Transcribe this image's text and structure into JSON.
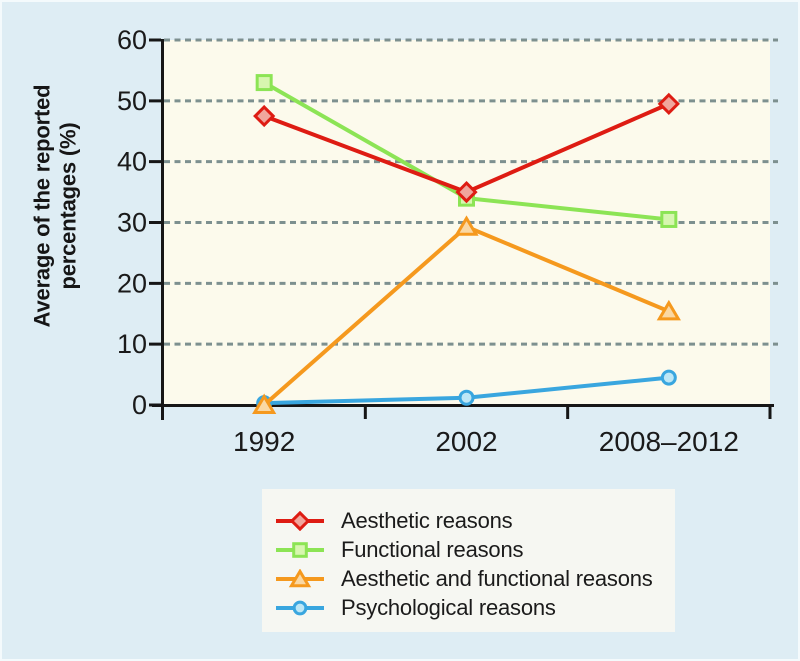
{
  "figure": {
    "colors": {
      "background": "#deedf4",
      "plot_background": "#fcfaec",
      "legend_background": "#f6f7f2",
      "grid": "#7d908f",
      "axis": "#161616",
      "text": "#1a1a1a"
    }
  },
  "chart_data": {
    "type": "line",
    "title": "",
    "categories": [
      "1992",
      "2002",
      "2008–2012"
    ],
    "series": [
      {
        "name": "Aesthetic reasons",
        "marker": "diamond",
        "color": "#de1c13",
        "marker_fill": "#f0a69d",
        "values": [
          47.5,
          35.0,
          49.5
        ]
      },
      {
        "name": "Functional reasons",
        "marker": "square",
        "color": "#8ce455",
        "marker_fill": "#d7f6b0",
        "values": [
          53.0,
          34.0,
          30.5
        ]
      },
      {
        "name": "Aesthetic and functional reasons",
        "marker": "triangle",
        "color": "#f5991e",
        "marker_fill": "#fad8a3",
        "values": [
          0.0,
          29.3,
          15.4
        ]
      },
      {
        "name": "Psychological reasons",
        "marker": "circle",
        "color": "#39a6df",
        "marker_fill": "#bde7f6",
        "values": [
          0.3,
          1.2,
          4.5
        ]
      }
    ],
    "xlabel": "",
    "ylabel": "Average of the reported percentages (%)",
    "ylabel_lines": [
      "Average of the reported",
      "percentages (%)"
    ],
    "y_ticks": [
      0,
      10,
      20,
      30,
      40,
      50,
      60
    ],
    "ylim": [
      0,
      60
    ],
    "grid": "horizontal-dashed",
    "legend_position": "bottom"
  }
}
